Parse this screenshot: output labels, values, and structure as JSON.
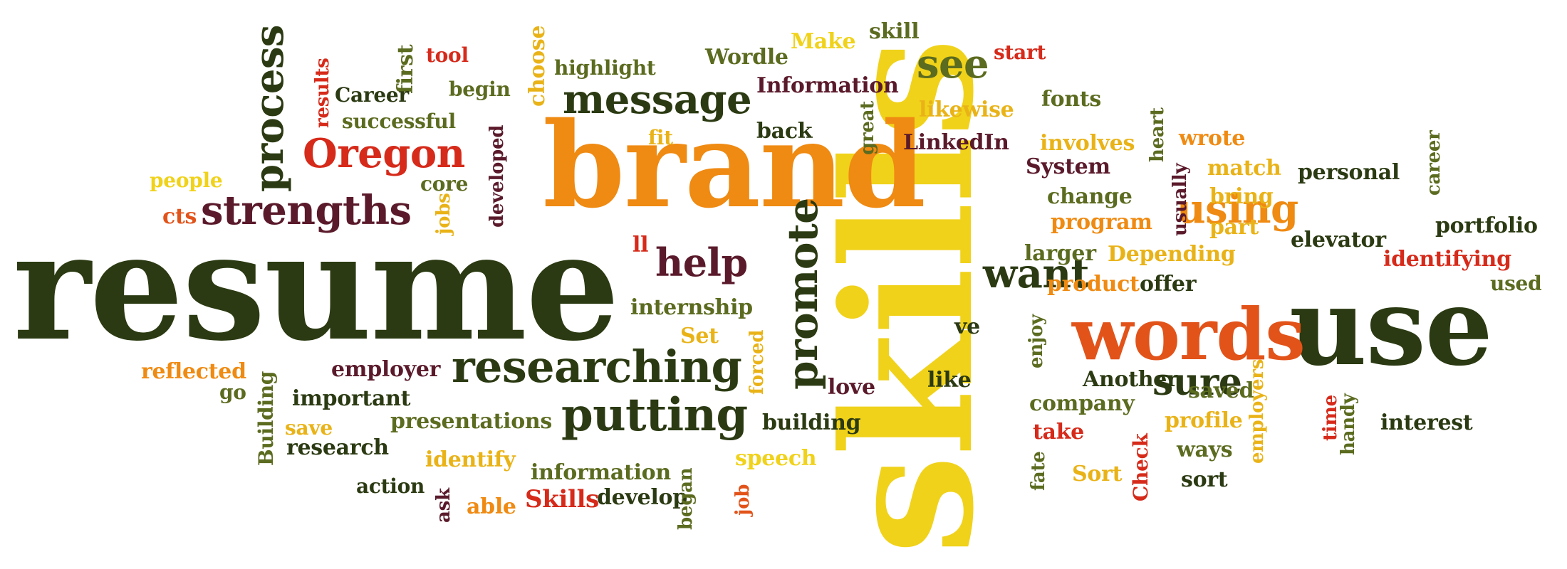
{
  "palette": {
    "dark_green": "#2b3a12",
    "olive": "#5b6b1f",
    "maroon": "#5a1a2b",
    "orange": "#ef8a12",
    "red_orange": "#e2531a",
    "red": "#d62a1a",
    "yellow": "#f0d21a",
    "gold": "#e9b318"
  },
  "words": [
    {
      "text": "resume",
      "color": "dark_green"
    },
    {
      "text": "skills",
      "color": "yellow"
    },
    {
      "text": "brand",
      "color": "orange"
    },
    {
      "text": "use",
      "color": "dark_green"
    },
    {
      "text": "words",
      "color": "red_orange"
    },
    {
      "text": "message",
      "color": "dark_green"
    },
    {
      "text": "researching",
      "color": "dark_green"
    },
    {
      "text": "putting",
      "color": "dark_green"
    },
    {
      "text": "Oregon",
      "color": "red"
    },
    {
      "text": "strengths",
      "color": "maroon"
    },
    {
      "text": "process",
      "color": "dark_green"
    },
    {
      "text": "help",
      "color": "maroon"
    },
    {
      "text": "promote",
      "color": "dark_green"
    },
    {
      "text": "want",
      "color": "dark_green"
    },
    {
      "text": "using",
      "color": "orange"
    },
    {
      "text": "sure",
      "color": "dark_green"
    },
    {
      "text": "see",
      "color": "olive"
    },
    {
      "text": "highlight",
      "color": "olive"
    },
    {
      "text": "Wordle",
      "color": "olive"
    },
    {
      "text": "Make",
      "color": "yellow"
    },
    {
      "text": "skill",
      "color": "olive"
    },
    {
      "text": "start",
      "color": "red"
    },
    {
      "text": "tool",
      "color": "red"
    },
    {
      "text": "first",
      "color": "olive"
    },
    {
      "text": "choose",
      "color": "gold"
    },
    {
      "text": "results",
      "color": "red"
    },
    {
      "text": "Career",
      "color": "dark_green"
    },
    {
      "text": "begin",
      "color": "olive"
    },
    {
      "text": "Information",
      "color": "maroon"
    },
    {
      "text": "likewise",
      "color": "gold"
    },
    {
      "text": "fonts",
      "color": "olive"
    },
    {
      "text": "successful",
      "color": "olive"
    },
    {
      "text": "back",
      "color": "dark_green"
    },
    {
      "text": "great",
      "color": "olive"
    },
    {
      "text": "LinkedIn",
      "color": "maroon"
    },
    {
      "text": "involves",
      "color": "gold"
    },
    {
      "text": "wrote",
      "color": "orange"
    },
    {
      "text": "heart",
      "color": "olive"
    },
    {
      "text": "fit",
      "color": "gold"
    },
    {
      "text": "System",
      "color": "maroon"
    },
    {
      "text": "change",
      "color": "olive"
    },
    {
      "text": "usually",
      "color": "maroon"
    },
    {
      "text": "match",
      "color": "gold"
    },
    {
      "text": "personal",
      "color": "dark_green"
    },
    {
      "text": "career",
      "color": "olive"
    },
    {
      "text": "people",
      "color": "yellow"
    },
    {
      "text": "core",
      "color": "olive"
    },
    {
      "text": "developed",
      "color": "maroon"
    },
    {
      "text": "jobs",
      "color": "gold"
    },
    {
      "text": "cts",
      "color": "red_orange"
    },
    {
      "text": "program",
      "color": "orange"
    },
    {
      "text": "bring",
      "color": "gold"
    },
    {
      "text": "part",
      "color": "gold"
    },
    {
      "text": "portfolio",
      "color": "dark_green"
    },
    {
      "text": "elevator",
      "color": "dark_green"
    },
    {
      "text": "identifying",
      "color": "red"
    },
    {
      "text": "larger",
      "color": "olive"
    },
    {
      "text": "Depending",
      "color": "gold"
    },
    {
      "text": "used",
      "color": "olive"
    },
    {
      "text": "ll",
      "color": "red"
    },
    {
      "text": "product",
      "color": "orange"
    },
    {
      "text": "offer",
      "color": "dark_green"
    },
    {
      "text": "internship",
      "color": "olive"
    },
    {
      "text": "Set",
      "color": "gold"
    },
    {
      "text": "ve",
      "color": "dark_green"
    },
    {
      "text": "enjoy",
      "color": "olive"
    },
    {
      "text": "forced",
      "color": "gold"
    },
    {
      "text": "reflected",
      "color": "orange"
    },
    {
      "text": "employer",
      "color": "maroon"
    },
    {
      "text": "go",
      "color": "olive"
    },
    {
      "text": "important",
      "color": "dark_green"
    },
    {
      "text": "Building",
      "color": "olive"
    },
    {
      "text": "love",
      "color": "maroon"
    },
    {
      "text": "like",
      "color": "dark_green"
    },
    {
      "text": "Another",
      "color": "dark_green"
    },
    {
      "text": "saved",
      "color": "olive"
    },
    {
      "text": "employers",
      "color": "gold"
    },
    {
      "text": "company",
      "color": "olive"
    },
    {
      "text": "profile",
      "color": "gold"
    },
    {
      "text": "time",
      "color": "red"
    },
    {
      "text": "interest",
      "color": "dark_green"
    },
    {
      "text": "handy",
      "color": "olive"
    },
    {
      "text": "save",
      "color": "gold"
    },
    {
      "text": "presentations",
      "color": "olive"
    },
    {
      "text": "building",
      "color": "dark_green"
    },
    {
      "text": "take",
      "color": "red"
    },
    {
      "text": "research",
      "color": "dark_green"
    },
    {
      "text": "ways",
      "color": "olive"
    },
    {
      "text": "identify",
      "color": "gold"
    },
    {
      "text": "speech",
      "color": "yellow"
    },
    {
      "text": "Check",
      "color": "red"
    },
    {
      "text": "information",
      "color": "olive"
    },
    {
      "text": "fate",
      "color": "olive"
    },
    {
      "text": "Sort",
      "color": "gold"
    },
    {
      "text": "sort",
      "color": "dark_green"
    },
    {
      "text": "action",
      "color": "dark_green"
    },
    {
      "text": "ask",
      "color": "maroon"
    },
    {
      "text": "able",
      "color": "orange"
    },
    {
      "text": "Skills",
      "color": "red"
    },
    {
      "text": "develop",
      "color": "dark_green"
    },
    {
      "text": "began",
      "color": "olive"
    },
    {
      "text": "job",
      "color": "red_orange"
    }
  ]
}
